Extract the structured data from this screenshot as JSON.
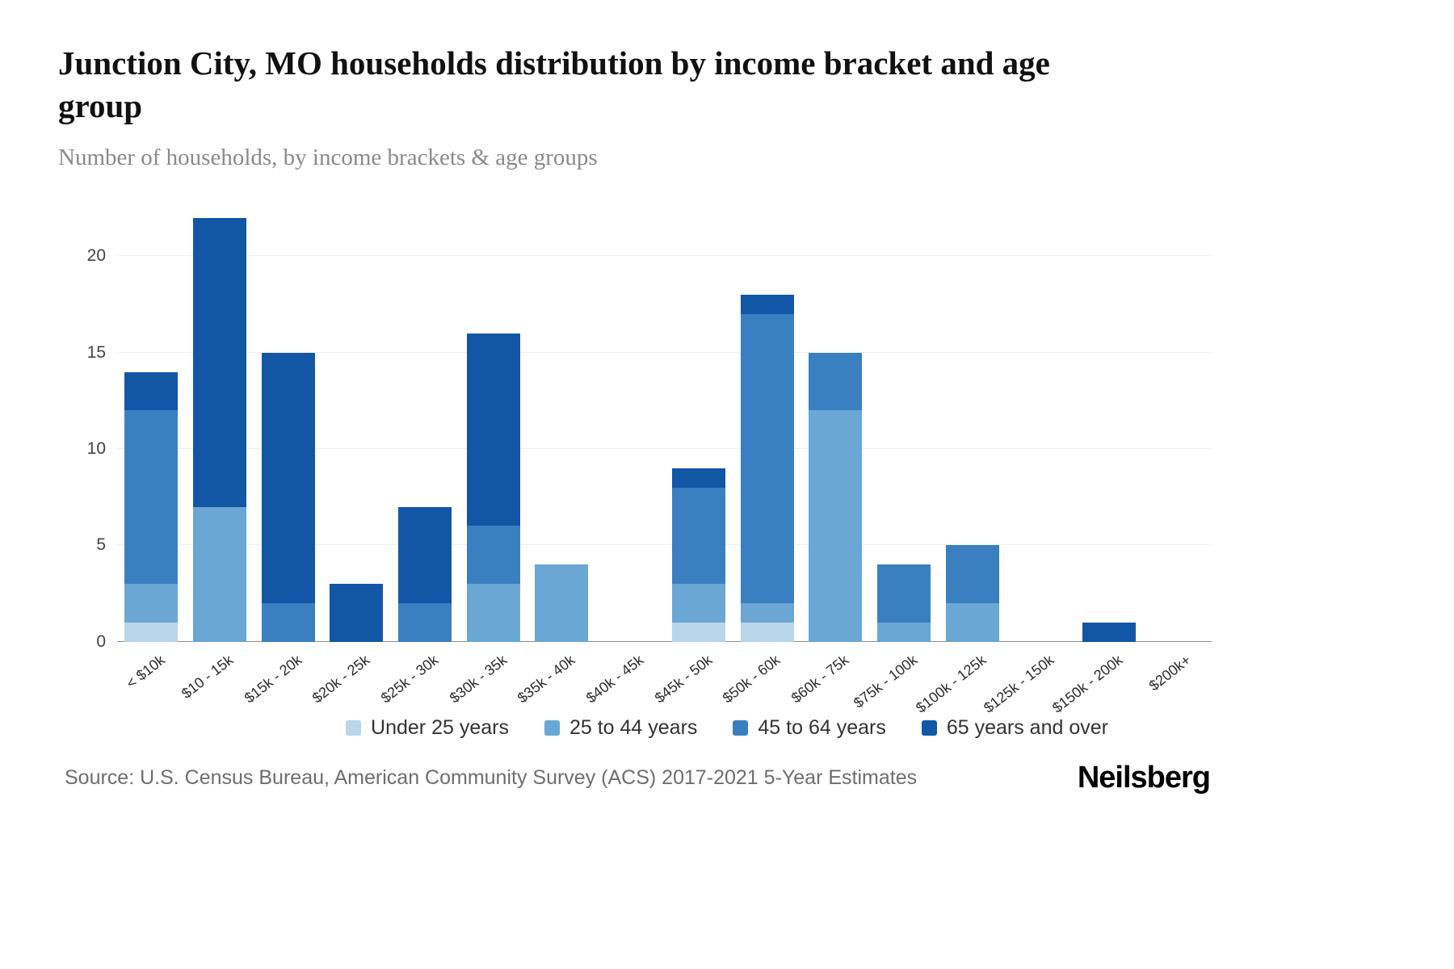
{
  "header": {
    "title": "Junction City, MO households distribution by income bracket and age group",
    "subtitle": "Number of households, by income brackets & age groups"
  },
  "chart_data": {
    "type": "bar",
    "stacked": true,
    "title": "Junction City, MO households distribution by income bracket and age group",
    "subtitle": "Number of households, by income brackets & age groups",
    "xlabel": "",
    "ylabel": "",
    "ylim": [
      0,
      22
    ],
    "yticks": [
      0,
      5,
      10,
      15,
      20
    ],
    "grid": true,
    "legend_position": "bottom",
    "categories": [
      "< $10k",
      "$10 - 15k",
      "$15k - 20k",
      "$20k - 25k",
      "$25k - 30k",
      "$30k - 35k",
      "$35k - 40k",
      "$40k - 45k",
      "$45k - 50k",
      "$50k - 60k",
      "$60k - 75k",
      "$75k - 100k",
      "$100k - 125k",
      "$125k - 150k",
      "$150k - 200k",
      "$200k+"
    ],
    "series": [
      {
        "name": "Under 25 years",
        "color": "#b9d6ea",
        "values": [
          1,
          0,
          0,
          0,
          0,
          0,
          0,
          0,
          1,
          1,
          0,
          0,
          0,
          0,
          0,
          0
        ]
      },
      {
        "name": "25 to 44 years",
        "color": "#6aa7d4",
        "values": [
          2,
          7,
          0,
          0,
          0,
          3,
          4,
          0,
          2,
          1,
          12,
          1,
          2,
          0,
          0,
          0
        ]
      },
      {
        "name": "45 to 64 years",
        "color": "#3a80c0",
        "values": [
          9,
          0,
          2,
          0,
          2,
          3,
          0,
          0,
          5,
          15,
          3,
          3,
          3,
          0,
          0,
          0
        ]
      },
      {
        "name": "65 years and over",
        "color": "#1256a6",
        "values": [
          2,
          15,
          13,
          3,
          5,
          10,
          0,
          0,
          1,
          1,
          0,
          0,
          0,
          0,
          1,
          0
        ]
      }
    ],
    "totals": [
      14,
      22,
      15,
      3,
      7,
      16,
      4,
      0,
      9,
      18,
      15,
      4,
      5,
      0,
      1,
      0
    ]
  },
  "footer": {
    "source": "Source: U.S. Census Bureau, American Community Survey (ACS) 2017-2021 5-Year Estimates",
    "logo": "Neilsberg"
  }
}
